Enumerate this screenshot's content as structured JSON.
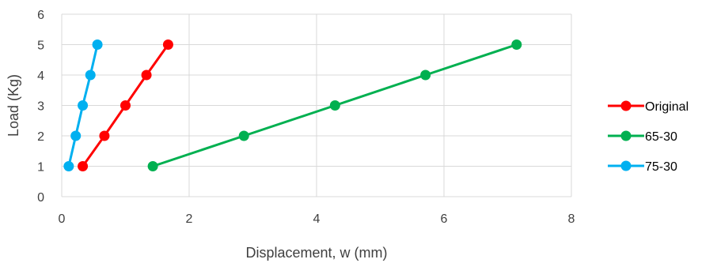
{
  "chart_data": {
    "type": "line",
    "title": "",
    "xlabel": "Displacement, w (mm)",
    "ylabel": "Load (Kg)",
    "xlim": [
      0,
      8
    ],
    "ylim": [
      0,
      6
    ],
    "xticks": [
      0,
      2,
      4,
      6,
      8
    ],
    "yticks": [
      0,
      1,
      2,
      3,
      4,
      5,
      6
    ],
    "grid": true,
    "legend_position": "right",
    "series": [
      {
        "name": "Original",
        "color": "#ff0000",
        "x": [
          0.33,
          0.67,
          1.0,
          1.33,
          1.67
        ],
        "y": [
          1,
          2,
          3,
          4,
          5
        ]
      },
      {
        "name": "65-30",
        "color": "#00b050",
        "x": [
          1.43,
          2.86,
          4.29,
          5.71,
          7.14
        ],
        "y": [
          1,
          2,
          3,
          4,
          5
        ]
      },
      {
        "name": "75-30",
        "color": "#00b0f0",
        "x": [
          0.11,
          0.22,
          0.33,
          0.45,
          0.56
        ],
        "y": [
          1,
          2,
          3,
          4,
          5
        ]
      }
    ]
  }
}
